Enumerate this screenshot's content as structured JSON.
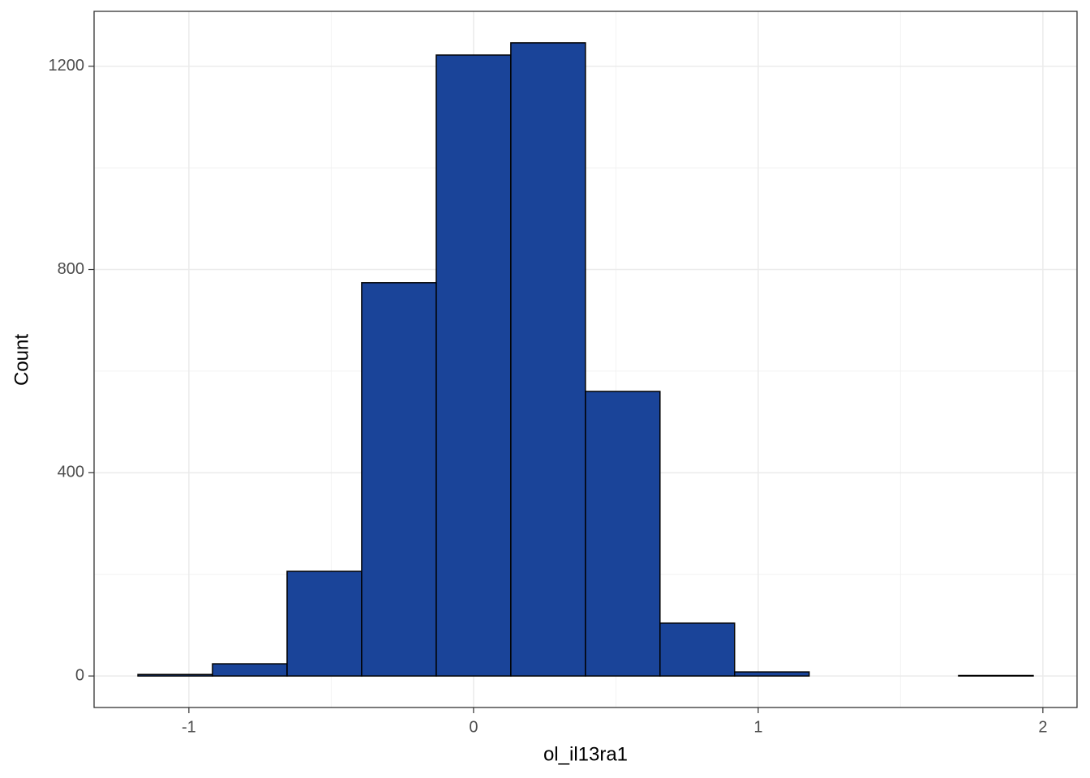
{
  "chart_data": {
    "type": "histogram",
    "x_label": "ol_il13ra1",
    "y_label": "Count",
    "bins": [
      -1.179,
      -0.917,
      -0.655,
      -0.393,
      -0.131,
      0.131,
      0.393,
      0.655,
      0.917,
      1.179,
      1.442,
      1.704,
      1.966
    ],
    "values": [
      3,
      24,
      206,
      774,
      1222,
      1246,
      560,
      104,
      8,
      0,
      0,
      1
    ],
    "color": "#1a4499",
    "edge_color": "#000000",
    "xlim": [
      -1.333,
      2.12
    ],
    "ylim": [
      -62,
      1308
    ],
    "xticks": [
      -1,
      0,
      1,
      2
    ],
    "yticks": [
      0,
      400,
      800,
      1200
    ],
    "xminorticks": [
      -0.5,
      0.5,
      1.5
    ],
    "yminorticks": [
      200,
      600,
      1000
    ],
    "grid": true
  }
}
